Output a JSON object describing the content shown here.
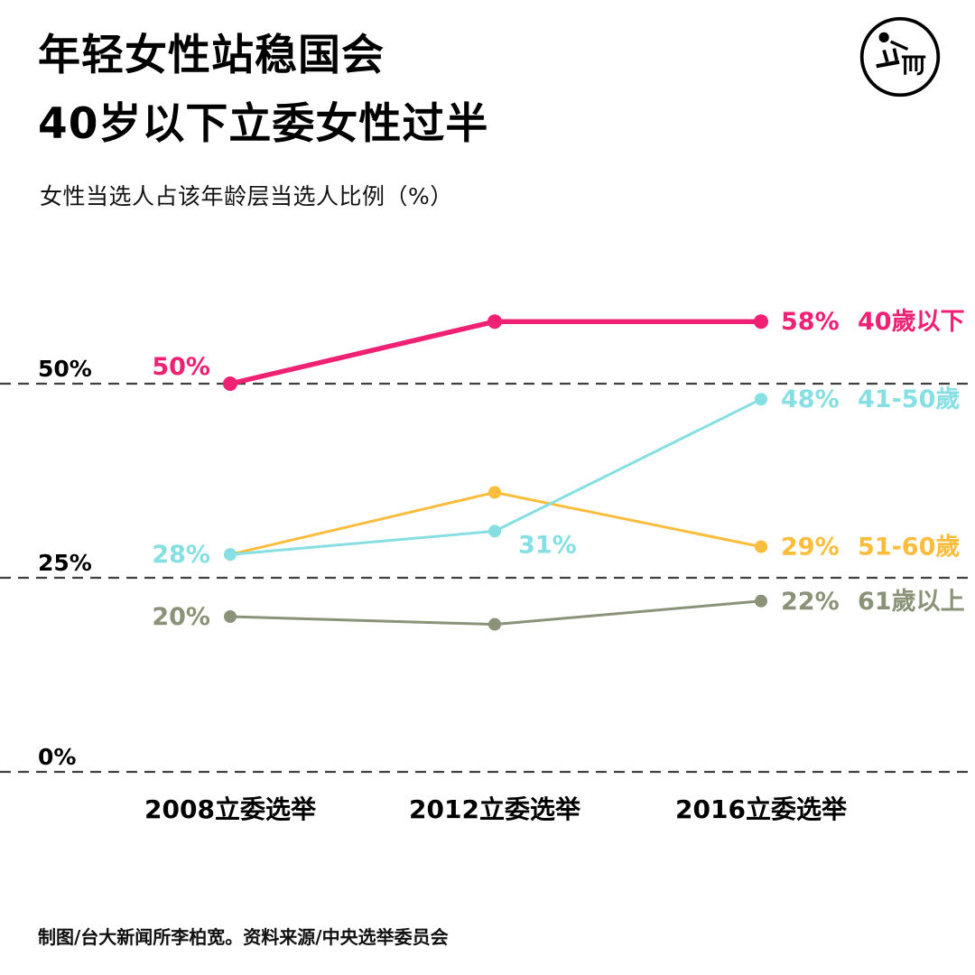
{
  "header": {
    "title_line1": "年轻女性站稳国会",
    "title_line2": "40岁以下立委女性过半",
    "subtitle": "女性当选人占该年龄层当选人比例（%）",
    "logo_name": "initium-media-logo"
  },
  "footer": {
    "credits": "制图/台大新闻所李柏宽。资料来源/中央选举委员会"
  },
  "chart_data": {
    "type": "line",
    "title": "年轻女性站稳国会 40岁以下立委女性过半",
    "subtitle": "女性当选人占该年龄层当选人比例（%）",
    "x_categories": [
      "2008立委选举",
      "2012立委选举",
      "2016立委选举"
    ],
    "ylim": [
      0,
      65
    ],
    "grid": "dashed-horizontal",
    "legend_position": "right-of-last-point",
    "yticks": [
      {
        "value": 50,
        "label": "50%"
      },
      {
        "value": 25,
        "label": "25%"
      },
      {
        "value": 0,
        "label": "0%"
      }
    ],
    "series": [
      {
        "id": "under-40",
        "name": "40歲以下",
        "color": "#f02074",
        "line_width": 5.5,
        "marker_radius": 8,
        "values": [
          50,
          58,
          58
        ],
        "point_labels": [
          {
            "i": 0,
            "text": "50%",
            "pos": "left-up"
          },
          {
            "i": 2,
            "text": "58%",
            "pos": "right"
          }
        ]
      },
      {
        "id": "41-50",
        "name": "41-50歲",
        "color": "#86dfe2",
        "line_width": 3,
        "marker_radius": 7,
        "values": [
          28,
          31,
          48
        ],
        "point_labels": [
          {
            "i": 0,
            "text": "28%",
            "pos": "left"
          },
          {
            "i": 1,
            "text": "31%",
            "pos": "below-right"
          },
          {
            "i": 2,
            "text": "48%",
            "pos": "right"
          }
        ]
      },
      {
        "id": "51-60",
        "name": "51-60歲",
        "color": "#fbbd3b",
        "line_width": 3,
        "marker_radius": 7,
        "values": [
          28,
          36,
          29
        ],
        "point_labels": [
          {
            "i": 2,
            "text": "29%",
            "pos": "right"
          }
        ]
      },
      {
        "id": "over-61",
        "name": "61歲以上",
        "color": "#8a9377",
        "line_width": 3,
        "marker_radius": 7,
        "values": [
          20,
          19,
          22
        ],
        "point_labels": [
          {
            "i": 0,
            "text": "20%",
            "pos": "left"
          },
          {
            "i": 2,
            "text": "22%",
            "pos": "right"
          }
        ]
      }
    ]
  }
}
